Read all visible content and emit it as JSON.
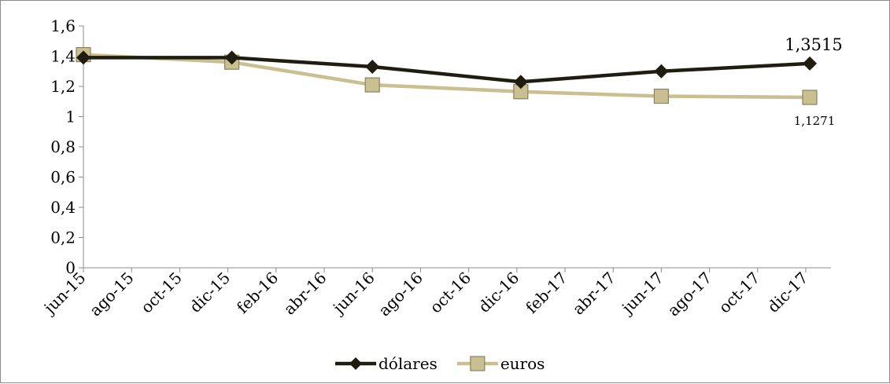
{
  "chart_data": {
    "type": "line",
    "title": "",
    "xlabel": "",
    "ylabel": "",
    "x_tick_labels": [
      "jun-15",
      "ago-15",
      "oct-15",
      "dic-15",
      "feb-16",
      "abr-16",
      "jun-16",
      "ago-16",
      "oct-16",
      "dic-16",
      "feb-17",
      "abr-17",
      "jun-17",
      "ago-17",
      "oct-17",
      "dic-17"
    ],
    "y_tick_labels": [
      "0",
      "0,2",
      "0,4",
      "0,6",
      "0,8",
      "1",
      "1,2",
      "1,4",
      "1,6"
    ],
    "ylim": [
      0,
      1.6
    ],
    "xlim": [
      "2015-06-01",
      "2017-12-31"
    ],
    "grid": false,
    "legend_position": "bottom",
    "series": [
      {
        "name": "dólares",
        "color": "#1f1c10",
        "marker": "diamond",
        "points": [
          {
            "x": "2015-06-01",
            "y": 1.39
          },
          {
            "x": "2015-12-06",
            "y": 1.39
          },
          {
            "x": "2016-06-01",
            "y": 1.33
          },
          {
            "x": "2016-12-06",
            "y": 1.23
          },
          {
            "x": "2017-06-01",
            "y": 1.3
          },
          {
            "x": "2017-12-06",
            "y": 1.3515
          }
        ]
      },
      {
        "name": "euros",
        "color": "#c9bf91",
        "marker": "square",
        "points": [
          {
            "x": "2015-06-01",
            "y": 1.41
          },
          {
            "x": "2015-12-06",
            "y": 1.36
          },
          {
            "x": "2016-06-01",
            "y": 1.21
          },
          {
            "x": "2016-12-06",
            "y": 1.165
          },
          {
            "x": "2017-06-01",
            "y": 1.135
          },
          {
            "x": "2017-12-06",
            "y": 1.1271
          }
        ]
      }
    ],
    "annotations": [
      {
        "series": "dólares",
        "text": "1,3515"
      },
      {
        "series": "euros",
        "text": "1,1271"
      }
    ]
  }
}
